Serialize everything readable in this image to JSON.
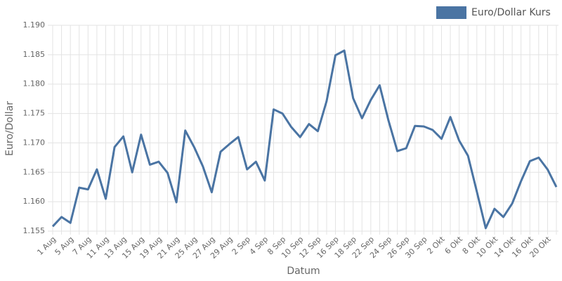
{
  "chart_data": {
    "type": "line",
    "legend_position": "top-right",
    "xlabel": "Datum",
    "ylabel": "Euro/Dollar",
    "categories": [
      "1 Aug",
      null,
      "5 Aug",
      null,
      "7 Aug",
      null,
      "11 Aug",
      null,
      "13 Aug",
      null,
      "15 Aug",
      null,
      "19 Aug",
      null,
      "21 Aug",
      null,
      "25 Aug",
      null,
      "27 Aug",
      null,
      "29 Aug",
      null,
      "2 Sep",
      null,
      "4 Sep",
      null,
      "8 Sep",
      null,
      "10 Sep",
      null,
      "12 Sep",
      null,
      "16 Sep",
      null,
      "18 Sep",
      null,
      "22 Sep",
      null,
      "24 Sep",
      null,
      "26 Sep",
      null,
      "30 Sep",
      null,
      "2 Okt",
      null,
      "6 Okt",
      null,
      "8 Okt",
      null,
      "10 Okt",
      null,
      "14 Okt",
      null,
      "16 Okt",
      null,
      "20 Okt",
      null
    ],
    "series": [
      {
        "name": "Euro/Dollar Kurs",
        "color": "#4a74a3",
        "values": [
          1.1558,
          1.1574,
          1.1564,
          1.1624,
          1.1621,
          1.1655,
          1.1605,
          1.1693,
          1.1711,
          1.165,
          1.1714,
          1.1663,
          1.1668,
          1.1649,
          1.1599,
          1.1721,
          1.1693,
          1.166,
          1.1616,
          1.1685,
          1.1698,
          1.171,
          1.1655,
          1.1668,
          1.1636,
          1.1757,
          1.175,
          1.1727,
          1.171,
          1.1732,
          1.172,
          1.1771,
          1.1849,
          1.1857,
          1.1776,
          1.1742,
          1.1773,
          1.1798,
          1.1738,
          1.1686,
          1.1691,
          1.1729,
          1.1728,
          1.1722,
          1.1707,
          1.1744,
          1.1704,
          1.1678,
          1.1617,
          1.1555,
          1.1588,
          1.1574,
          1.1597,
          1.1635,
          1.1669,
          1.1675,
          1.1655,
          1.1625
        ]
      }
    ],
    "ylim": [
      1.155,
      1.19
    ],
    "yticks": [
      1.155,
      {
        "value": 1.16,
        "label": "1.160"
      },
      1.165,
      {
        "value": 1.17,
        "label": "1.170"
      },
      1.175,
      {
        "value": 1.18,
        "label": "1.180"
      },
      1.185,
      {
        "value": 1.19,
        "label": "1.190"
      }
    ],
    "grid": true
  }
}
